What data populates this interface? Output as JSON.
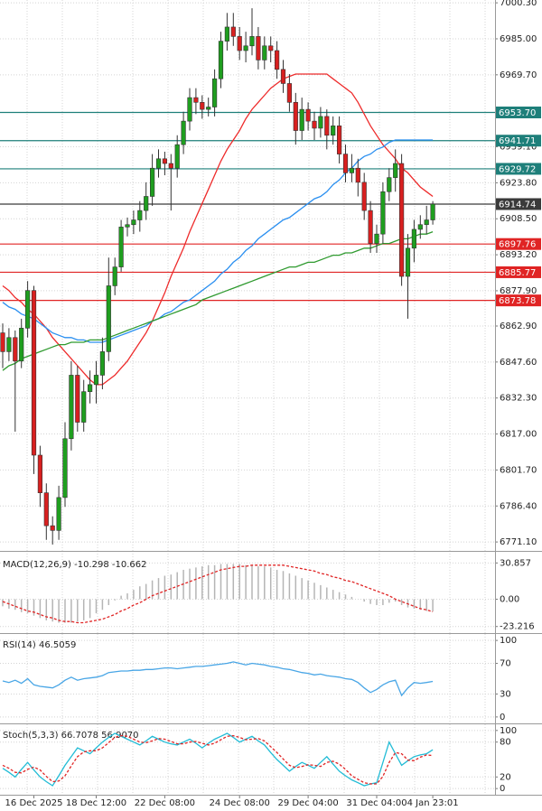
{
  "chart_data": [
    {
      "type": "candlestick",
      "categories": [
        null,
        null,
        null,
        null,
        null,
        "16 Dec 2025",
        null,
        null,
        null,
        null,
        null,
        null,
        null,
        null,
        null,
        "18 Dec 12:00",
        null,
        null,
        null,
        null,
        null,
        null,
        null,
        null,
        null,
        null,
        "22 Dec 08:00",
        null,
        null,
        null,
        null,
        null,
        null,
        null,
        null,
        null,
        null,
        null,
        "24 Dec 08:00",
        null,
        null,
        null,
        null,
        null,
        null,
        null,
        null,
        null,
        null,
        "29 Dec 04:00",
        null,
        null,
        null,
        null,
        null,
        null,
        null,
        null,
        null,
        null,
        "31 Dec 04:00",
        null,
        null,
        null,
        null,
        null,
        null,
        null,
        null,
        "4 Jan 23:01"
      ],
      "open": [
        6860,
        6852,
        6858,
        6848,
        6862,
        6878,
        6808,
        6792,
        6778,
        6776,
        6790,
        6815,
        6842,
        6822,
        6835,
        6838,
        6842,
        6852,
        6880,
        6888,
        6905,
        6906,
        6908,
        6912,
        6918,
        6930,
        6934,
        6932,
        6930,
        6940,
        6950,
        6960,
        6958,
        6955,
        6956,
        6968,
        6984,
        6990,
        6986,
        6980,
        6982,
        6986,
        6976,
        6982,
        6980,
        6972,
        6966,
        6958,
        6946,
        6955,
        6950,
        6947,
        6952,
        6944,
        6948,
        6936,
        6928,
        6930,
        6924,
        6912,
        6898,
        6902,
        6920,
        6926,
        6932,
        6884,
        6896,
        6904,
        6906,
        6908
      ],
      "high": [
        6864,
        6862,
        6861,
        6866,
        6882,
        6880,
        6812,
        6796,
        6782,
        6795,
        6822,
        6848,
        6846,
        6840,
        6844,
        6848,
        6858,
        6892,
        6892,
        6908,
        6909,
        6912,
        6916,
        6924,
        6936,
        6938,
        6937,
        6936,
        6944,
        6954,
        6964,
        6964,
        6961,
        6960,
        6972,
        6988,
        6996,
        6996,
        6990,
        6988,
        6998,
        6990,
        6986,
        6986,
        6984,
        6976,
        6970,
        6962,
        6960,
        6958,
        6954,
        6956,
        6955,
        6952,
        6952,
        6940,
        6936,
        6934,
        6928,
        6916,
        6906,
        6924,
        6930,
        6938,
        6936,
        6902,
        6908,
        6910,
        6914,
        6916
      ],
      "low": [
        6845,
        6848,
        6818,
        6845,
        6858,
        6800,
        6786,
        6772,
        6770,
        6772,
        6786,
        6810,
        6818,
        6818,
        6830,
        6830,
        6836,
        6848,
        6876,
        6886,
        6901,
        6902,
        6903,
        6908,
        6914,
        6926,
        6927,
        6912,
        6926,
        6936,
        6946,
        6953,
        6951,
        6952,
        6952,
        6964,
        6980,
        6982,
        6976,
        6975,
        6978,
        6972,
        6972,
        6975,
        6968,
        6962,
        6954,
        6940,
        6942,
        6946,
        6942,
        6943,
        6938,
        6940,
        6932,
        6924,
        6924,
        6918,
        6908,
        6894,
        6894,
        6898,
        6916,
        6920,
        6880,
        6866,
        6890,
        6900,
        6902,
        6906
      ],
      "close": [
        6852,
        6858,
        6848,
        6862,
        6878,
        6808,
        6792,
        6778,
        6776,
        6790,
        6815,
        6842,
        6822,
        6835,
        6838,
        6842,
        6852,
        6880,
        6888,
        6905,
        6906,
        6908,
        6912,
        6918,
        6930,
        6934,
        6932,
        6930,
        6940,
        6950,
        6960,
        6958,
        6955,
        6956,
        6968,
        6984,
        6990,
        6986,
        6980,
        6982,
        6986,
        6976,
        6982,
        6980,
        6972,
        6966,
        6958,
        6946,
        6955,
        6950,
        6947,
        6952,
        6944,
        6948,
        6936,
        6928,
        6930,
        6924,
        6912,
        6898,
        6902,
        6920,
        6926,
        6932,
        6884,
        6896,
        6904,
        6906,
        6908,
        6914.74
      ],
      "up_color": "#1f9e1f",
      "down_color": "#d82020",
      "overlays": [
        {
          "color": "#ee2b2b",
          "values": [
            6880,
            6878,
            6875,
            6873,
            6870,
            6868,
            6865,
            6862,
            6858,
            6855,
            6852,
            6849,
            6846,
            6843,
            6840,
            6838,
            6838,
            6840,
            6842,
            6845,
            6848,
            6852,
            6856,
            6860,
            6865,
            6871,
            6877,
            6884,
            6890,
            6896,
            6903,
            6909,
            6915,
            6921,
            6927,
            6933,
            6938,
            6942,
            6946,
            6951,
            6955,
            6958,
            6961,
            6964,
            6966,
            6968,
            6969,
            6970,
            6970,
            6970,
            6970,
            6970,
            6970,
            6968,
            6966,
            6964,
            6962,
            6958,
            6953,
            6948,
            6944,
            6940,
            6937,
            6934,
            6930,
            6928,
            6925,
            6922,
            6920,
            6918
          ]
        },
        {
          "color": "#2a8ff0",
          "values": [
            6873,
            6871,
            6870,
            6868,
            6867,
            6866,
            6864,
            6862,
            6860,
            6859,
            6858,
            6858,
            6857,
            6857,
            6856,
            6856,
            6856,
            6857,
            6858,
            6859,
            6860,
            6861,
            6862,
            6863,
            6865,
            6866,
            6868,
            6869,
            6871,
            6873,
            6874,
            6876,
            6878,
            6880,
            6882,
            6885,
            6887,
            6890,
            6892,
            6895,
            6897,
            6900,
            6902,
            6904,
            6906,
            6908,
            6909,
            6911,
            6913,
            6915,
            6917,
            6918,
            6920,
            6923,
            6925,
            6928,
            6930,
            6933,
            6935,
            6936,
            6938,
            6939,
            6941,
            6942,
            6942,
            6942,
            6942,
            6942,
            6942,
            6942
          ]
        },
        {
          "color": "#2f9a2f",
          "values": [
            6844,
            6846,
            6847,
            6849,
            6850,
            6851,
            6852,
            6853,
            6854,
            6855,
            6855,
            6856,
            6856,
            6856,
            6857,
            6857,
            6857,
            6858,
            6859,
            6860,
            6861,
            6862,
            6863,
            6864,
            6865,
            6866,
            6867,
            6868,
            6869,
            6870,
            6871,
            6872,
            6874,
            6875,
            6876,
            6877,
            6878,
            6879,
            6880,
            6881,
            6882,
            6883,
            6884,
            6885,
            6886,
            6887,
            6888,
            6888,
            6889,
            6890,
            6890,
            6891,
            6892,
            6893,
            6893,
            6894,
            6894,
            6895,
            6896,
            6896,
            6897,
            6898,
            6898,
            6899,
            6900,
            6900,
            6901,
            6902,
            6902,
            6903
          ]
        }
      ],
      "levels": [
        {
          "value": 6953.7,
          "label": "6953.70",
          "color": "#1e7f7a"
        },
        {
          "value": 6941.71,
          "label": "6941.71",
          "color": "#1e7f7a"
        },
        {
          "value": 6929.72,
          "label": "6929.72",
          "color": "#1e7f7a"
        },
        {
          "value": 6914.74,
          "label": "6914.74",
          "color": "#3a3a3a"
        },
        {
          "value": 6897.76,
          "label": "6897.76",
          "color": "#e02424"
        },
        {
          "value": 6885.77,
          "label": "6885.77",
          "color": "#e02424"
        },
        {
          "value": 6873.78,
          "label": "6873.78",
          "color": "#e02424"
        }
      ],
      "ylim": [
        6767.3,
        7001.5
      ],
      "yticks": [
        {
          "value": 7000.3,
          "label": "7000.30"
        },
        {
          "value": 6985,
          "label": "6985.00"
        },
        {
          "value": 6969.7,
          "label": "6969.70"
        },
        {
          "value": 6939.1,
          "label": "6939.10"
        },
        {
          "value": 6923.8,
          "label": "6923.80"
        },
        {
          "value": 6908.5,
          "label": "6908.50"
        },
        {
          "value": 6893.2,
          "label": "6893.20"
        },
        {
          "value": 6877.9,
          "label": "6877.90"
        },
        {
          "value": 6862.9,
          "label": "6862.90"
        },
        {
          "value": 6847.6,
          "label": "6847.60"
        },
        {
          "value": 6832.3,
          "label": "6832.30"
        },
        {
          "value": 6817,
          "label": "6817.00"
        },
        {
          "value": 6801.7,
          "label": "6801.70"
        },
        {
          "value": 6786.4,
          "label": "6786.40"
        },
        {
          "value": 6771.1,
          "label": "6771.10"
        }
      ],
      "grid": true
    },
    {
      "type": "macd",
      "title": "MACD(12,26,9) -10.298 -10.662",
      "histogram": [
        -6,
        -8,
        -9,
        -11,
        -12,
        -14,
        -16,
        -18,
        -19,
        -20,
        -20,
        -20,
        -19,
        -18,
        -16,
        -12,
        -9,
        -5,
        -1,
        3,
        5,
        8,
        11,
        13,
        16,
        18,
        20,
        21,
        23,
        25,
        26,
        27,
        28,
        29,
        29,
        30,
        30,
        30,
        30,
        29,
        29,
        28,
        28,
        27,
        25,
        24,
        22,
        20,
        18,
        16,
        14,
        12,
        10,
        8,
        6,
        4,
        2,
        0,
        -2,
        -4,
        -5,
        -5,
        -3,
        -2,
        -5,
        -7,
        -8,
        -9,
        -10,
        -10.298
      ],
      "signal": [
        -2,
        -4,
        -6,
        -8,
        -10,
        -11,
        -13,
        -15,
        -16,
        -18,
        -19,
        -19,
        -20,
        -20,
        -19,
        -18,
        -17,
        -15,
        -13,
        -10,
        -8,
        -5,
        -3,
        0,
        3,
        5,
        7,
        9,
        11,
        13,
        15,
        17,
        19,
        21,
        23,
        25,
        26,
        27,
        28,
        28,
        29,
        29,
        29,
        29,
        29,
        29,
        28,
        27,
        26,
        25,
        24,
        22,
        21,
        19,
        18,
        16,
        15,
        13,
        11,
        9,
        7,
        5,
        3,
        0,
        -2,
        -4,
        -6,
        -8,
        -9,
        -10.662
      ],
      "histogram_color": "#b5b5b5",
      "signal_color": "#e02424",
      "ylim": [
        -28.8,
        38.8
      ],
      "yticks": [
        30.857,
        {
          "value": 0,
          "label": "0.00"
        },
        -23.216
      ]
    },
    {
      "type": "line",
      "title": "RSI(14) 46.5059",
      "values": [
        47,
        45,
        48,
        44,
        50,
        42,
        40,
        39,
        38,
        42,
        48,
        52,
        48,
        50,
        51,
        52,
        54,
        58,
        59,
        60,
        60,
        61,
        61,
        62,
        62,
        63,
        64,
        64,
        63,
        64,
        65,
        66,
        66,
        67,
        68,
        69,
        70,
        72,
        70,
        68,
        70,
        69,
        68,
        66,
        65,
        63,
        62,
        60,
        58,
        57,
        55,
        56,
        54,
        53,
        52,
        50,
        49,
        45,
        38,
        32,
        36,
        42,
        46,
        48,
        28,
        38,
        45,
        44,
        45,
        46.5059
      ],
      "color": "#49a6e6",
      "ylim": [
        -8.4,
        108.4
      ],
      "yticks": [
        100,
        70,
        30,
        0
      ]
    },
    {
      "type": "line",
      "title": "Stoch(5,3,3) 66.7078 56.9070",
      "series": [
        {
          "color": "#22bcd6",
          "values": [
            35,
            28,
            20,
            33,
            45,
            32,
            20,
            12,
            5,
            22,
            40,
            55,
            70,
            65,
            60,
            70,
            80,
            88,
            95,
            90,
            85,
            80,
            75,
            82,
            90,
            85,
            80,
            77,
            75,
            80,
            85,
            78,
            70,
            78,
            85,
            90,
            95,
            88,
            80,
            85,
            90,
            82,
            75,
            62,
            50,
            40,
            30,
            38,
            45,
            40,
            35,
            45,
            55,
            42,
            30,
            22,
            15,
            10,
            5,
            8,
            10,
            45,
            80,
            60,
            40,
            48,
            55,
            58,
            60,
            66.7078
          ]
        },
        {
          "color": "#e02424",
          "dashed": true,
          "values": [
            40,
            35,
            28,
            27,
            33,
            37,
            32,
            21,
            12,
            13,
            22,
            39,
            55,
            63,
            65,
            65,
            70,
            79,
            88,
            91,
            90,
            85,
            80,
            79,
            82,
            86,
            85,
            81,
            77,
            77,
            80,
            81,
            78,
            75,
            78,
            84,
            90,
            91,
            88,
            84,
            85,
            86,
            82,
            72,
            62,
            51,
            40,
            36,
            38,
            41,
            40,
            38,
            45,
            47,
            42,
            33,
            22,
            16,
            10,
            8,
            8,
            21,
            45,
            62,
            60,
            49,
            48,
            54,
            58,
            56.907
          ]
        }
      ],
      "ylim": [
        -10.6,
        110.6
      ],
      "yticks": [
        100,
        80,
        20,
        0
      ]
    }
  ]
}
